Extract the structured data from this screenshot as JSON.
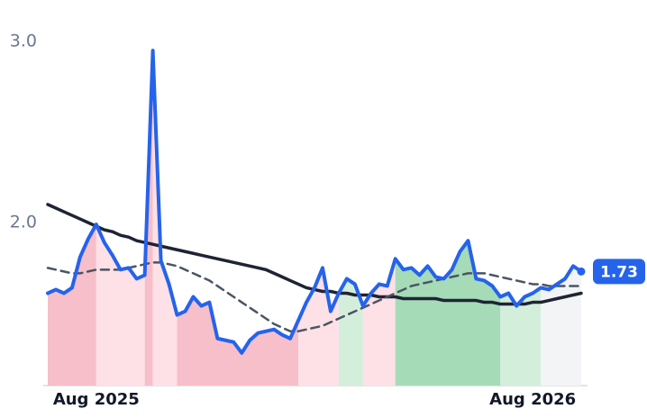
{
  "chart_data": {
    "type": "line",
    "categories": [
      null,
      null,
      null,
      null,
      null,
      null,
      "Aug 2025",
      null,
      null,
      null,
      null,
      null,
      null,
      null,
      null,
      null,
      null,
      null,
      null,
      null,
      null,
      null,
      null,
      null,
      null,
      null,
      null,
      null,
      null,
      null,
      null,
      null,
      null,
      null,
      null,
      null,
      null,
      null,
      null,
      null,
      null,
      null,
      null,
      null,
      null,
      null,
      null,
      null,
      null,
      null,
      null,
      null,
      null,
      null,
      null,
      null,
      null,
      null,
      null,
      null,
      "Aug 2026",
      null,
      null,
      null,
      null,
      null,
      null
    ],
    "series": [
      {
        "color": "#2563eb",
        "width": 4,
        "dash": null,
        "values": [
          1.61,
          1.63,
          1.61,
          1.64,
          1.81,
          1.91,
          1.99,
          1.89,
          1.82,
          1.74,
          1.75,
          1.69,
          1.71,
          2.95,
          1.79,
          1.66,
          1.49,
          1.51,
          1.59,
          1.54,
          1.56,
          1.36,
          1.35,
          1.34,
          1.28,
          1.35,
          1.39,
          1.4,
          1.41,
          1.38,
          1.36,
          1.46,
          1.56,
          1.64,
          1.75,
          1.51,
          1.61,
          1.69,
          1.66,
          1.54,
          1.61,
          1.66,
          1.65,
          1.8,
          1.74,
          1.75,
          1.71,
          1.76,
          1.7,
          1.69,
          1.74,
          1.84,
          1.9,
          1.69,
          1.68,
          1.65,
          1.59,
          1.61,
          1.54,
          1.59,
          1.61,
          1.64,
          1.63,
          1.66,
          1.69,
          1.76,
          1.73
        ]
      },
      {
        "color": "#1f2433",
        "width": 3.5,
        "dash": null,
        "values": [
          2.1,
          2.08,
          2.06,
          2.04,
          2.02,
          2.0,
          1.98,
          1.96,
          1.95,
          1.93,
          1.92,
          1.9,
          1.89,
          1.88,
          1.87,
          1.86,
          1.85,
          1.84,
          1.83,
          1.82,
          1.81,
          1.8,
          1.79,
          1.78,
          1.77,
          1.76,
          1.75,
          1.74,
          1.72,
          1.7,
          1.68,
          1.66,
          1.64,
          1.63,
          1.62,
          1.62,
          1.61,
          1.61,
          1.6,
          1.6,
          1.6,
          1.59,
          1.59,
          1.59,
          1.58,
          1.58,
          1.58,
          1.58,
          1.58,
          1.57,
          1.57,
          1.57,
          1.57,
          1.57,
          1.56,
          1.56,
          1.55,
          1.55,
          1.55,
          1.55,
          1.56,
          1.56,
          1.57,
          1.58,
          1.59,
          1.6,
          1.61
        ]
      },
      {
        "color": "#4b5563",
        "width": 2.5,
        "dash": "9 6",
        "values": [
          1.75,
          1.74,
          1.73,
          1.72,
          1.72,
          1.73,
          1.74,
          1.74,
          1.74,
          1.74,
          1.75,
          1.76,
          1.77,
          1.78,
          1.78,
          1.77,
          1.76,
          1.74,
          1.72,
          1.7,
          1.68,
          1.65,
          1.62,
          1.59,
          1.56,
          1.53,
          1.5,
          1.47,
          1.44,
          1.42,
          1.4,
          1.4,
          1.41,
          1.42,
          1.43,
          1.45,
          1.47,
          1.49,
          1.51,
          1.53,
          1.55,
          1.57,
          1.59,
          1.61,
          1.63,
          1.65,
          1.66,
          1.67,
          1.68,
          1.69,
          1.7,
          1.71,
          1.72,
          1.72,
          1.72,
          1.71,
          1.7,
          1.69,
          1.68,
          1.67,
          1.66,
          1.66,
          1.65,
          1.65,
          1.65,
          1.65,
          1.65
        ]
      }
    ],
    "shading": [
      {
        "from": 0,
        "to": 6,
        "color": "#f7bfc9"
      },
      {
        "from": 6,
        "to": 12,
        "color": "#fde1e7"
      },
      {
        "from": 12,
        "to": 13,
        "color": "#f7bfc9"
      },
      {
        "from": 13,
        "to": 16,
        "color": "#fde1e7"
      },
      {
        "from": 16,
        "to": 31,
        "color": "#f7bfc9"
      },
      {
        "from": 31,
        "to": 36,
        "color": "#fde1e7"
      },
      {
        "from": 36,
        "to": 39,
        "color": "#d4eedc"
      },
      {
        "from": 39,
        "to": 43,
        "color": "#fde1e7"
      },
      {
        "from": 43,
        "to": 56,
        "color": "#a5dbb7"
      },
      {
        "from": 56,
        "to": 61,
        "color": "#d4eedc"
      },
      {
        "from": 61,
        "to": 66,
        "color": "#f3f4f6"
      }
    ],
    "ylim": [
      1.1,
      3.1
    ],
    "yticks": [
      {
        "value": 2,
        "label": "2.0"
      },
      {
        "value": 3,
        "label": "3.0"
      }
    ],
    "grid": false
  }
}
